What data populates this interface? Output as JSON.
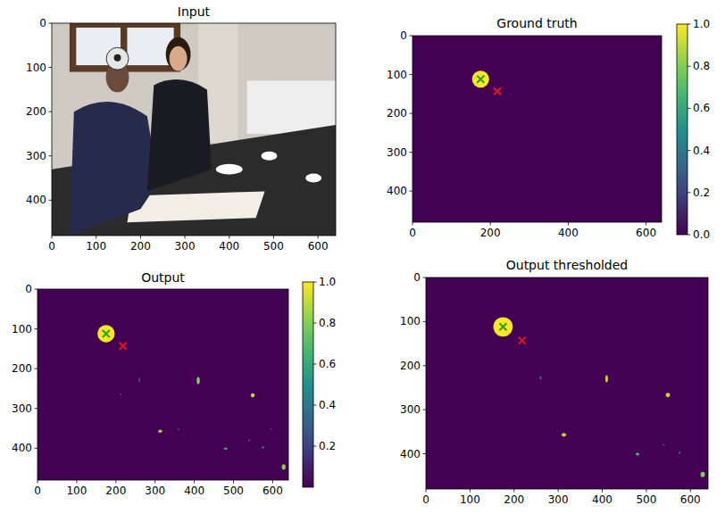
{
  "chart_data": [
    {
      "type": "image",
      "title": "Input",
      "xlim": [
        0,
        640
      ],
      "ylim": [
        480,
        0
      ],
      "xticks": [
        0,
        100,
        200,
        300,
        400,
        500,
        600
      ],
      "yticks": [
        0,
        100,
        200,
        300,
        400
      ]
    },
    {
      "type": "heatmap",
      "title": "Ground truth",
      "xlim": [
        0,
        640
      ],
      "ylim": [
        480,
        0
      ],
      "xticks": [
        0,
        200,
        400,
        600
      ],
      "yticks": [
        0,
        100,
        200,
        300,
        400
      ],
      "blobs": [
        {
          "x": 175,
          "y": 112,
          "rx": 22,
          "ry": 22,
          "value": 1
        }
      ],
      "series": [
        {
          "type": "scatter",
          "color": "green",
          "marker": "x",
          "x": [
            175
          ],
          "values": [
            112
          ]
        },
        {
          "type": "scatter",
          "color": "red",
          "marker": "x",
          "x": [
            218
          ],
          "values": [
            143
          ]
        }
      ],
      "colorbar": {
        "clim": [
          0,
          1
        ],
        "ticks": [
          {
            "value": 0,
            "label": "0.0"
          },
          0.2,
          0.4,
          0.6,
          0.8,
          {
            "value": 1,
            "label": "1.0"
          }
        ]
      }
    },
    {
      "type": "heatmap",
      "title": "Output",
      "xlim": [
        0,
        640
      ],
      "ylim": [
        480,
        0
      ],
      "xticks": [
        0,
        100,
        200,
        300,
        400,
        500,
        600
      ],
      "yticks": [
        0,
        100,
        200,
        300,
        400
      ],
      "blobs": [
        {
          "x": 175,
          "y": 112,
          "rx": 22,
          "ry": 22,
          "value": 1
        },
        {
          "x": 410,
          "y": 230,
          "rx": 4,
          "ry": 9,
          "value": 0.8
        },
        {
          "x": 549,
          "y": 267,
          "rx": 5,
          "ry": 5,
          "value": 0.9
        },
        {
          "x": 313,
          "y": 357,
          "rx": 5,
          "ry": 4,
          "value": 0.85
        },
        {
          "x": 480,
          "y": 401,
          "rx": 5,
          "ry": 3,
          "value": 0.6
        },
        {
          "x": 628,
          "y": 447,
          "rx": 5,
          "ry": 7,
          "value": 0.8
        },
        {
          "x": 575,
          "y": 398,
          "rx": 3,
          "ry": 3,
          "value": 0.4
        },
        {
          "x": 260,
          "y": 228,
          "rx": 2,
          "ry": 6,
          "value": 0.3
        },
        {
          "x": 596,
          "y": 352,
          "rx": 2,
          "ry": 2,
          "value": 0.3
        },
        {
          "x": 540,
          "y": 380,
          "rx": 2,
          "ry": 3,
          "value": 0.3
        },
        {
          "x": 212,
          "y": 265,
          "rx": 2,
          "ry": 2,
          "value": 0.3
        },
        {
          "x": 360,
          "y": 352,
          "rx": 2,
          "ry": 2,
          "value": 0.3
        }
      ],
      "series": [
        {
          "type": "scatter",
          "color": "green",
          "marker": "x",
          "x": [
            175
          ],
          "values": [
            112
          ]
        },
        {
          "type": "scatter",
          "color": "red",
          "marker": "x",
          "x": [
            218
          ],
          "values": [
            143
          ]
        }
      ],
      "colorbar": {
        "clim": [
          0,
          1
        ],
        "ticks": [
          0.2,
          0.4,
          0.6,
          0.8,
          {
            "value": 1,
            "label": "1.0"
          }
        ]
      }
    },
    {
      "type": "heatmap",
      "title": "Output thresholded",
      "xlim": [
        0,
        640
      ],
      "ylim": [
        480,
        0
      ],
      "xticks": [
        0,
        100,
        200,
        300,
        400,
        500,
        600
      ],
      "yticks": [
        0,
        100,
        200,
        300,
        400
      ],
      "blobs": [
        {
          "x": 175,
          "y": 112,
          "rx": 22,
          "ry": 22,
          "value": 1
        },
        {
          "x": 410,
          "y": 230,
          "rx": 3,
          "ry": 8,
          "value": 0.9
        },
        {
          "x": 549,
          "y": 267,
          "rx": 5,
          "ry": 5,
          "value": 0.9
        },
        {
          "x": 313,
          "y": 357,
          "rx": 5,
          "ry": 4,
          "value": 0.9
        },
        {
          "x": 480,
          "y": 401,
          "rx": 4,
          "ry": 3,
          "value": 0.7
        },
        {
          "x": 628,
          "y": 447,
          "rx": 5,
          "ry": 6,
          "value": 0.8
        },
        {
          "x": 575,
          "y": 398,
          "rx": 2,
          "ry": 2,
          "value": 0.5
        },
        {
          "x": 260,
          "y": 228,
          "rx": 2,
          "ry": 4,
          "value": 0.4
        },
        {
          "x": 540,
          "y": 380,
          "rx": 2,
          "ry": 2,
          "value": 0.4
        }
      ],
      "series": [
        {
          "type": "scatter",
          "color": "green",
          "marker": "x",
          "x": [
            175
          ],
          "values": [
            112
          ]
        },
        {
          "type": "scatter",
          "color": "red",
          "marker": "x",
          "x": [
            218
          ],
          "values": [
            143
          ]
        }
      ]
    }
  ]
}
